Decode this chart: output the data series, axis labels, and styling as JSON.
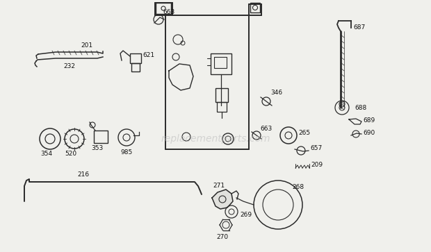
{
  "bg_color": "#f0f0ec",
  "line_color": "#2a2a2a",
  "text_color": "#111111",
  "watermark": "replacementparts.com",
  "watermark_color": "#bbbbbb",
  "figsize": [
    6.2,
    3.63
  ],
  "dpi": 100
}
